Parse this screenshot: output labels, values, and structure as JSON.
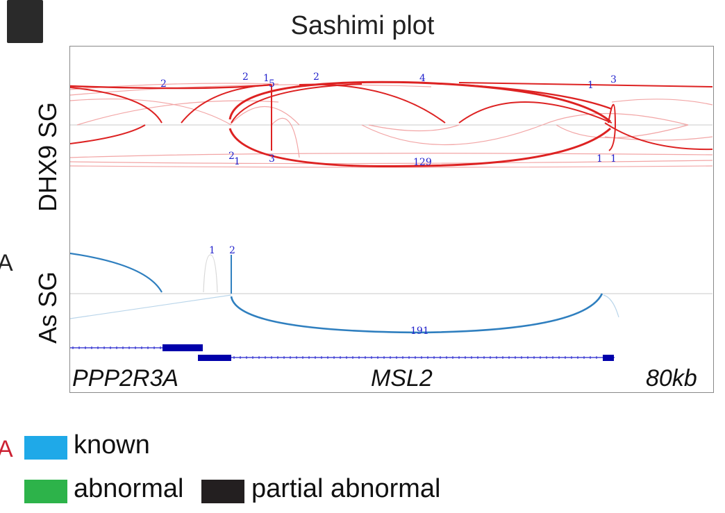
{
  "panel_letter": "",
  "title": "Sashimi plot",
  "tracks": {
    "top": {
      "label": "DHX9 SG",
      "color": "#dd2222",
      "junction_counts": [
        "2",
        "2",
        "1",
        "5",
        "2",
        "4",
        "1",
        "3",
        "2",
        "1",
        "3",
        "129",
        "1",
        "1"
      ]
    },
    "bottom": {
      "label": "As SG",
      "color": "#2f7fbf",
      "junction_counts": [
        "1",
        "2",
        "191"
      ]
    }
  },
  "genes": {
    "left": "PPP2R3A",
    "right": "MSL2",
    "scale": "80kb"
  },
  "stray_left_text": {
    "middle": "A",
    "bottom": "A"
  },
  "legend": {
    "items": [
      {
        "label": "known",
        "color": "#1fa9e8"
      },
      {
        "label": "abnormal",
        "color": "#2db34a"
      },
      {
        "label": "partial abnormal",
        "color": "#231f20"
      }
    ]
  }
}
